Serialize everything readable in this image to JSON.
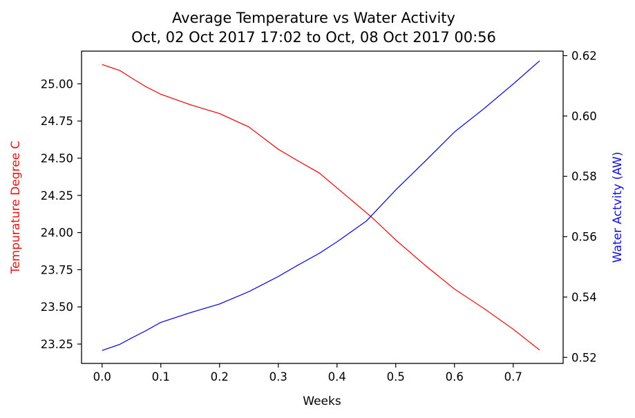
{
  "chart_data": {
    "type": "line",
    "title": "Average Temperature vs Water Activity",
    "subtitle": "Oct, 02 Oct 2017 17:02 to Oct, 08 Oct 2017 00:56",
    "xlabel": "Weeks",
    "ylabel_left": "Tempurature Degree C",
    "ylabel_right": "Water Actvity (AW)",
    "xlim": [
      -0.035,
      0.785
    ],
    "ylim_left": [
      23.12,
      25.22
    ],
    "ylim_right": [
      0.518,
      0.6215
    ],
    "x_ticks": [
      0.0,
      0.1,
      0.2,
      0.3,
      0.4,
      0.5,
      0.6,
      0.7
    ],
    "x_tick_labels": [
      "0.0",
      "0.1",
      "0.2",
      "0.3",
      "0.4",
      "0.5",
      "0.6",
      "0.7"
    ],
    "y_left_ticks": [
      23.25,
      23.5,
      23.75,
      24.0,
      24.25,
      24.5,
      24.75,
      25.0
    ],
    "y_left_tick_labels": [
      "23.25",
      "23.50",
      "23.75",
      "24.00",
      "24.25",
      "24.50",
      "24.75",
      "25.00"
    ],
    "y_right_ticks": [
      0.52,
      0.54,
      0.56,
      0.58,
      0.6,
      0.62
    ],
    "y_right_tick_labels": [
      "0.52",
      "0.54",
      "0.56",
      "0.58",
      "0.60",
      "0.62"
    ],
    "grid": false,
    "series": [
      {
        "axis": "left",
        "color": "#ee1111",
        "x": [
          0.0,
          0.03,
          0.05,
          0.075,
          0.1,
          0.15,
          0.2,
          0.25,
          0.3,
          0.33,
          0.37,
          0.4,
          0.43,
          0.46,
          0.5,
          0.55,
          0.6,
          0.65,
          0.7,
          0.745
        ],
        "y": [
          25.13,
          25.09,
          25.04,
          24.98,
          24.93,
          24.86,
          24.8,
          24.71,
          24.56,
          24.49,
          24.4,
          24.3,
          24.2,
          24.1,
          23.95,
          23.78,
          23.62,
          23.49,
          23.35,
          23.21
        ]
      },
      {
        "axis": "right",
        "color": "#1111dd",
        "x": [
          0.0,
          0.03,
          0.05,
          0.075,
          0.1,
          0.15,
          0.2,
          0.25,
          0.3,
          0.33,
          0.37,
          0.4,
          0.45,
          0.5,
          0.55,
          0.6,
          0.65,
          0.7,
          0.745
        ],
        "y": [
          0.5223,
          0.5243,
          0.5264,
          0.5289,
          0.5316,
          0.5348,
          0.5377,
          0.5418,
          0.5468,
          0.5502,
          0.5545,
          0.5583,
          0.5652,
          0.5755,
          0.585,
          0.5947,
          0.6024,
          0.6106,
          0.6183
        ]
      }
    ]
  }
}
